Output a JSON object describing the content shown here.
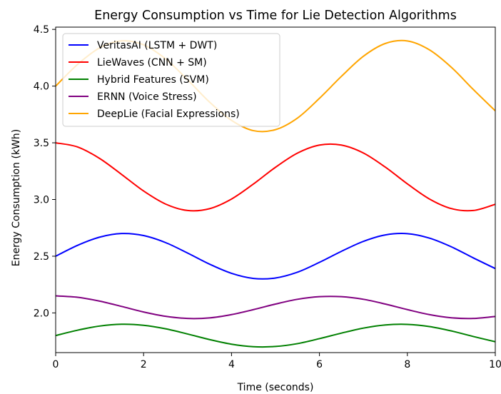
{
  "chart_data": {
    "type": "line",
    "title": "Energy Consumption vs Time for Lie Detection Algorithms",
    "xlabel": "Time (seconds)",
    "ylabel": "Energy Consumption (kWh)",
    "xlim": [
      0,
      10
    ],
    "ylim": [
      1.65,
      4.52
    ],
    "xticks": [
      "0",
      "2",
      "4",
      "6",
      "8",
      "10"
    ],
    "yticks": [
      "2.0",
      "2.5",
      "3.0",
      "3.5",
      "4.0",
      "4.5"
    ],
    "grid": false,
    "legend_position": "top-left",
    "x": [
      0,
      0.5,
      1,
      1.5,
      2,
      2.5,
      3,
      3.5,
      4,
      4.5,
      5,
      5.5,
      6,
      6.5,
      7,
      7.5,
      8,
      8.5,
      9,
      9.5,
      10
    ],
    "series": [
      {
        "name": "VeritasAI (LSTM + DWT)",
        "color": "#0000ff",
        "values": [
          2.5,
          2.596,
          2.668,
          2.7,
          2.682,
          2.62,
          2.528,
          2.43,
          2.349,
          2.304,
          2.308,
          2.359,
          2.446,
          2.543,
          2.631,
          2.688,
          2.699,
          2.66,
          2.583,
          2.485,
          2.391
        ]
      },
      {
        "name": "LieWaves (CNN + SM)",
        "color": "#ff0000",
        "values": [
          3.5,
          3.463,
          3.362,
          3.221,
          3.075,
          2.96,
          2.903,
          2.919,
          3.004,
          3.137,
          3.284,
          3.409,
          3.48,
          3.48,
          3.41,
          3.285,
          3.138,
          3.005,
          2.92,
          2.903,
          2.958
        ]
      },
      {
        "name": "Hybrid Features (SVM)",
        "color": "#008000",
        "values": [
          1.8,
          1.848,
          1.884,
          1.9,
          1.891,
          1.86,
          1.814,
          1.765,
          1.724,
          1.702,
          1.704,
          1.729,
          1.773,
          1.822,
          1.866,
          1.894,
          1.899,
          1.88,
          1.841,
          1.792,
          1.746
        ]
      },
      {
        "name": "ERNN (Voice Stress)",
        "color": "#800080",
        "values": [
          2.15,
          2.138,
          2.104,
          2.057,
          2.008,
          1.97,
          1.951,
          1.956,
          1.985,
          2.029,
          2.078,
          2.12,
          2.143,
          2.143,
          2.12,
          2.078,
          2.029,
          1.985,
          1.957,
          1.951,
          1.969
        ]
      },
      {
        "name": "DeepLie (Facial Expressions)",
        "color": "#ffa500",
        "values": [
          4.0,
          4.192,
          4.337,
          4.399,
          4.364,
          4.24,
          4.056,
          3.859,
          3.698,
          3.607,
          3.616,
          3.718,
          3.892,
          4.086,
          4.263,
          4.376,
          4.398,
          4.32,
          4.166,
          3.97,
          3.782
        ]
      }
    ]
  }
}
